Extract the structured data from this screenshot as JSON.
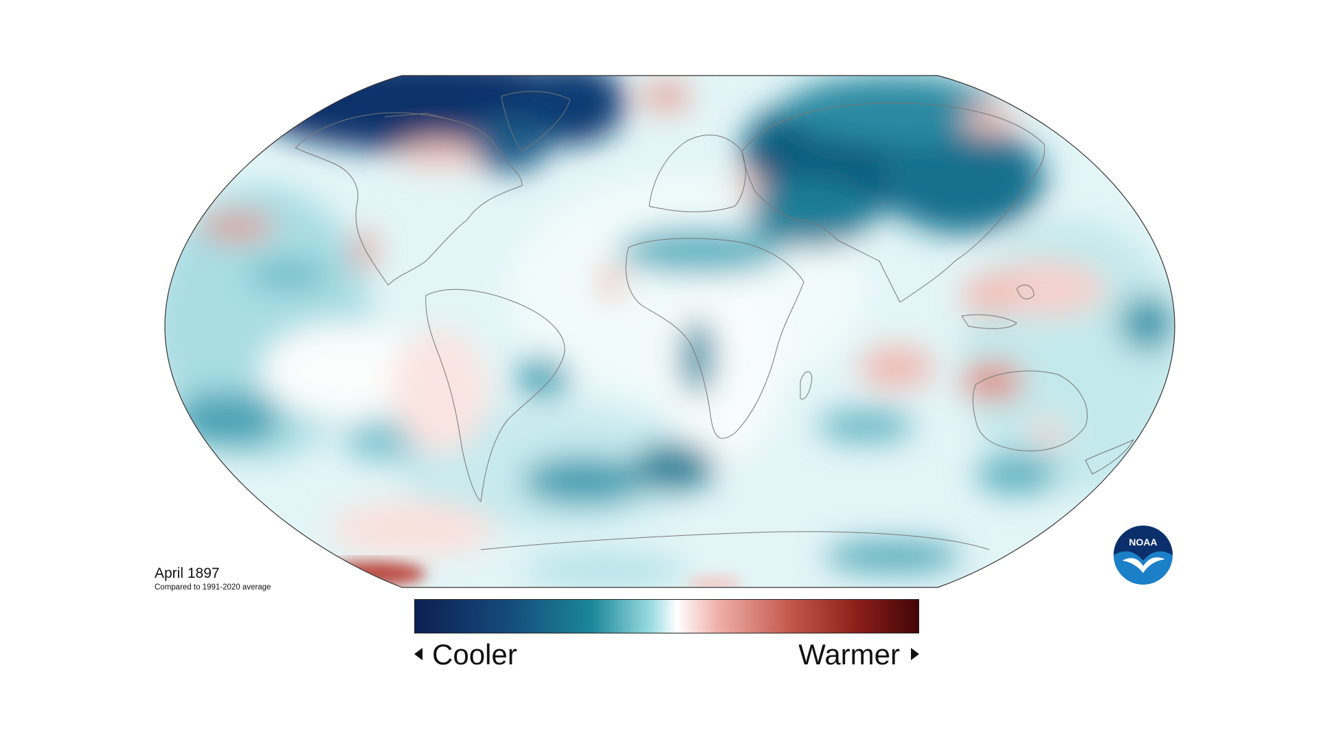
{
  "map": {
    "period_label": "April 1897",
    "baseline_note": "Compared to 1991-2020 average",
    "projection": "Robinson",
    "field": "surface temperature anomaly"
  },
  "legend": {
    "low_label": "Cooler",
    "high_label": "Warmer",
    "gradient_stops": [
      {
        "offset": 0.0,
        "color": "#0d1f52"
      },
      {
        "offset": 0.18,
        "color": "#14497a"
      },
      {
        "offset": 0.35,
        "color": "#1b8699"
      },
      {
        "offset": 0.47,
        "color": "#9cdde2"
      },
      {
        "offset": 0.52,
        "color": "#ffffff"
      },
      {
        "offset": 0.6,
        "color": "#efb1aa"
      },
      {
        "offset": 0.75,
        "color": "#c2554a"
      },
      {
        "offset": 0.88,
        "color": "#8c1e1a"
      },
      {
        "offset": 1.0,
        "color": "#420507"
      }
    ]
  },
  "logo": {
    "text": "NOAA",
    "colors": {
      "upper": "#0b2f6b",
      "lower": "#1c80c8"
    }
  }
}
